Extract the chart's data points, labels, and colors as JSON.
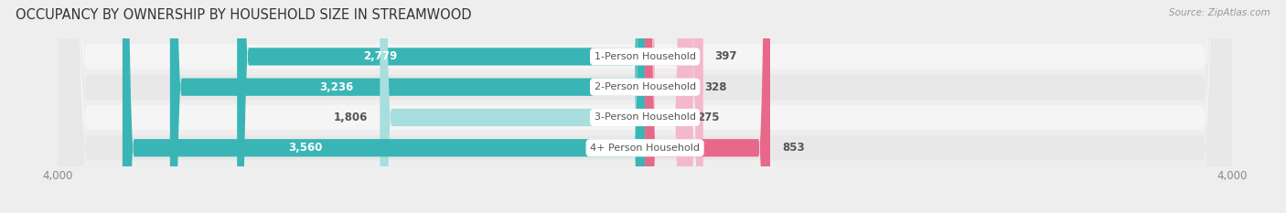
{
  "title": "OCCUPANCY BY OWNERSHIP BY HOUSEHOLD SIZE IN STREAMWOOD",
  "source": "Source: ZipAtlas.com",
  "categories": [
    "1-Person Household",
    "2-Person Household",
    "3-Person Household",
    "4+ Person Household"
  ],
  "owner_values": [
    2779,
    3236,
    1806,
    3560
  ],
  "renter_values": [
    397,
    328,
    275,
    853
  ],
  "max_scale": 4000,
  "owner_color_full": "#3ab5b5",
  "owner_color_light": "#a8dede",
  "renter_color_full": "#e8688a",
  "renter_color_light": "#f4b8cb",
  "label_color_owner_dark": "#555555",
  "label_color_owner_white": "#ffffff",
  "category_label_color": "#555555",
  "bar_height": 0.58,
  "background_color": "#eeeeee",
  "row_bg_odd": "#f5f5f5",
  "row_bg_even": "#e8e8e8",
  "title_fontsize": 10.5,
  "source_fontsize": 7.5,
  "bar_label_fontsize": 8.5,
  "cat_label_fontsize": 8,
  "axis_label_fontsize": 8.5,
  "legend_fontsize": 8.5
}
